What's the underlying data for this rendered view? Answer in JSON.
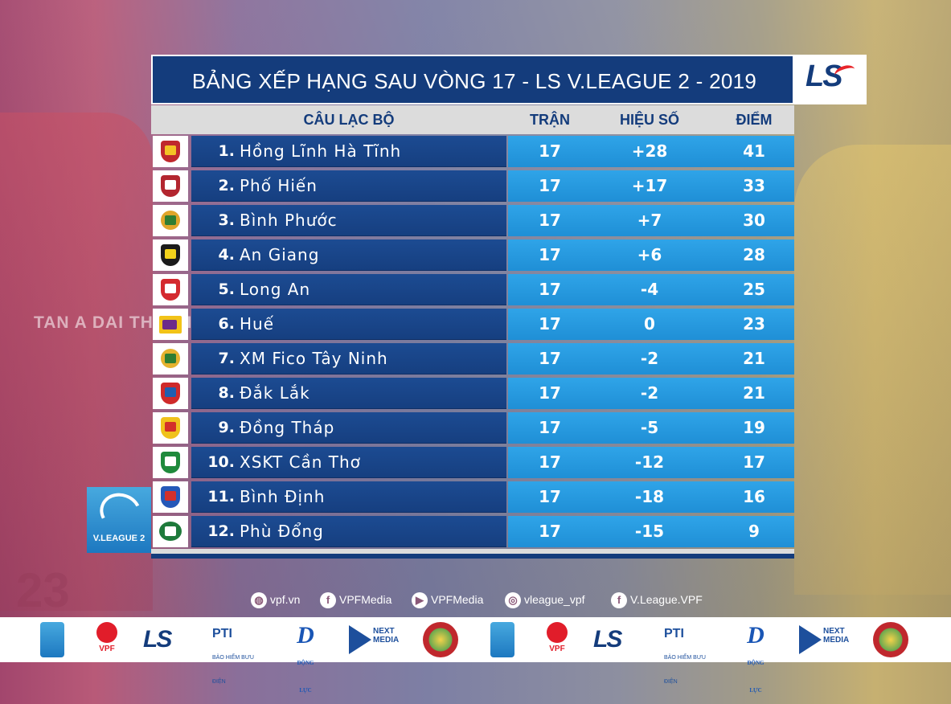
{
  "title": "BẢNG XẾP HẠNG SAU VÒNG 17 - LS V.LEAGUE 2 - 2019",
  "brand_logo": "LS",
  "colors": {
    "title_bg": "#143c7c",
    "club_bg": "#1c4b92",
    "stat_bg": "#2fa4e8",
    "header_bg": "#dcdcdc"
  },
  "headers": {
    "club": "CÂU LẠC BỘ",
    "played": "TRẬN",
    "goal_diff": "HIỆU SỐ",
    "points": "ĐIỂM"
  },
  "rows": [
    {
      "rank": "1.",
      "club": "Hồng Lĩnh Hà Tĩnh",
      "played": "17",
      "goal_diff": "+28",
      "points": "41",
      "badge_icon": "hong-linh-ha-tinh-badge-icon"
    },
    {
      "rank": "2.",
      "club": "Phố Hiến",
      "played": "17",
      "goal_diff": "+17",
      "points": "33",
      "badge_icon": "pho-hien-badge-icon"
    },
    {
      "rank": "3.",
      "club": "Bình Phước",
      "played": "17",
      "goal_diff": "+7",
      "points": "30",
      "badge_icon": "binh-phuoc-badge-icon"
    },
    {
      "rank": "4.",
      "club": "An Giang",
      "played": "17",
      "goal_diff": "+6",
      "points": "28",
      "badge_icon": "an-giang-badge-icon"
    },
    {
      "rank": "5.",
      "club": "Long An",
      "played": "17",
      "goal_diff": "-4",
      "points": "25",
      "badge_icon": "long-an-badge-icon"
    },
    {
      "rank": "6.",
      "club": "Huế",
      "played": "17",
      "goal_diff": "0",
      "points": "23",
      "badge_icon": "hue-badge-icon"
    },
    {
      "rank": "7.",
      "club": "XM Fico Tây Ninh",
      "played": "17",
      "goal_diff": "-2",
      "points": "21",
      "badge_icon": "tay-ninh-badge-icon"
    },
    {
      "rank": "8.",
      "club": "Đắk Lắk",
      "played": "17",
      "goal_diff": "-2",
      "points": "21",
      "badge_icon": "dak-lak-badge-icon"
    },
    {
      "rank": "9.",
      "club": "Đồng Tháp",
      "played": "17",
      "goal_diff": "-5",
      "points": "19",
      "badge_icon": "dong-thap-badge-icon"
    },
    {
      "rank": "10.",
      "club": "XSKT Cần Thơ",
      "played": "17",
      "goal_diff": "-12",
      "points": "17",
      "badge_icon": "can-tho-badge-icon"
    },
    {
      "rank": "11.",
      "club": "Bình Định",
      "played": "17",
      "goal_diff": "-18",
      "points": "16",
      "badge_icon": "binh-dinh-badge-icon"
    },
    {
      "rank": "12.",
      "club": "Phù Đổng",
      "played": "17",
      "goal_diff": "-15",
      "points": "9",
      "badge_icon": "phu-dong-badge-icon"
    }
  ],
  "background_text": {
    "shirt": "TAN A DAI THANH",
    "number": "23"
  },
  "vleague_logo_label": "V.LEAGUE 2",
  "social": [
    {
      "icon": "globe-icon",
      "label": "vpf.vn"
    },
    {
      "icon": "facebook-icon",
      "label": "VPFMedia"
    },
    {
      "icon": "youtube-icon",
      "label": "VPFMedia"
    },
    {
      "icon": "instagram-icon",
      "label": "vleague_vpf"
    },
    {
      "icon": "facebook-icon",
      "label": "V.League.VPF"
    }
  ],
  "sponsors": {
    "vpf": "VPF",
    "ls": "LS",
    "pti": "PTI",
    "pti_sub": "BẢO HIỂM BƯU ĐIỆN",
    "dl": "D",
    "dl_sub": "ĐỘNG LỰC",
    "next": "NEXT MEDIA"
  }
}
